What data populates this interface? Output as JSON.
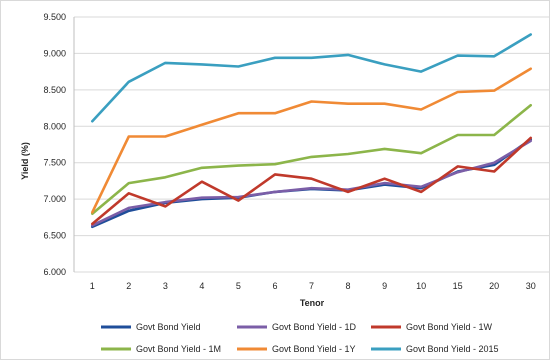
{
  "chart_data": {
    "type": "line",
    "title": "",
    "xlabel": "Tenor",
    "ylabel": "Yield (%)",
    "ylim": [
      6.0,
      9.5
    ],
    "yticks": [
      "6.000",
      "6.500",
      "7.000",
      "7.500",
      "8.000",
      "8.500",
      "9.000",
      "9.500"
    ],
    "yticks_values": [
      6.0,
      6.5,
      7.0,
      7.5,
      8.0,
      8.5,
      9.0,
      9.5
    ],
    "categories": [
      "1",
      "2",
      "3",
      "4",
      "5",
      "6",
      "7",
      "8",
      "9",
      "10",
      "15",
      "20",
      "30"
    ],
    "grid": "horizontal",
    "legend_position": "bottom",
    "series": [
      {
        "name": "Govt Bond Yield",
        "color": "#1f4e9a",
        "values": [
          6.62,
          6.84,
          6.95,
          7.0,
          7.02,
          7.1,
          7.14,
          7.12,
          7.2,
          7.15,
          7.38,
          7.47,
          7.82
        ]
      },
      {
        "name": "Govt Bond Yield - 1D",
        "color": "#7b5ea7",
        "values": [
          6.64,
          6.88,
          6.96,
          7.02,
          7.03,
          7.1,
          7.15,
          7.13,
          7.22,
          7.17,
          7.37,
          7.5,
          7.8
        ]
      },
      {
        "name": "Govt Bond Yield - 1W",
        "color": "#c0392b",
        "values": [
          6.66,
          7.08,
          6.9,
          7.24,
          6.98,
          7.34,
          7.28,
          7.1,
          7.28,
          7.1,
          7.45,
          7.38,
          7.84
        ]
      },
      {
        "name": "Govt Bond Yield - 1M",
        "color": "#8cb54a",
        "values": [
          6.8,
          7.22,
          7.3,
          7.43,
          7.46,
          7.48,
          7.58,
          7.62,
          7.69,
          7.63,
          7.88,
          7.88,
          8.29
        ]
      },
      {
        "name": "Govt Bond Yield - 1Y",
        "color": "#f08a35",
        "values": [
          6.82,
          7.86,
          7.86,
          8.02,
          8.18,
          8.18,
          8.34,
          8.31,
          8.31,
          8.23,
          8.47,
          8.49,
          8.79
        ]
      },
      {
        "name": "Govt Bond Yield - 2015",
        "color": "#3a9fc0",
        "values": [
          8.07,
          8.61,
          8.87,
          8.85,
          8.82,
          8.94,
          8.94,
          8.98,
          8.85,
          8.75,
          8.97,
          8.96,
          9.26
        ]
      }
    ]
  }
}
